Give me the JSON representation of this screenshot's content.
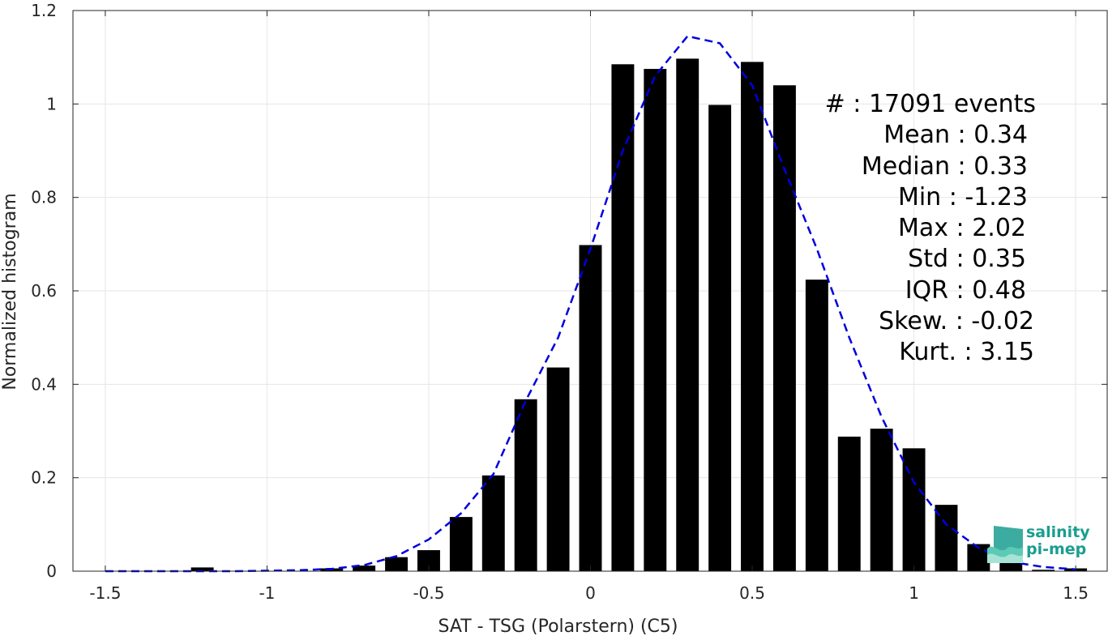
{
  "chart_data": {
    "type": "bar",
    "xlabel": "SAT - TSG (Polarstern) (C5)",
    "ylabel": "Normalized histogram",
    "xlim": [
      -1.6,
      1.6
    ],
    "ylim": [
      0,
      1.2
    ],
    "xticks": [
      -1.5,
      -1,
      -0.5,
      0,
      0.5,
      1,
      1.5
    ],
    "xtick_labels": [
      "-1.5",
      "-1",
      "-0.5",
      "0",
      "0.5",
      "1",
      "1.5"
    ],
    "yticks": [
      0,
      0.2,
      0.4,
      0.6,
      0.8,
      1,
      1.2
    ],
    "ytick_labels": [
      "0",
      "0.2",
      "0.4",
      "0.6",
      "0.8",
      "1",
      "1.2"
    ],
    "grid": true,
    "bar_width": 0.07,
    "bars": {
      "x": [
        -1.2,
        -0.8,
        -0.7,
        -0.6,
        -0.5,
        -0.4,
        -0.3,
        -0.2,
        -0.1,
        0.0,
        0.1,
        0.2,
        0.3,
        0.4,
        0.5,
        0.6,
        0.7,
        0.8,
        0.9,
        1.0,
        1.1,
        1.2,
        1.3,
        1.4,
        1.5
      ],
      "values": [
        0.008,
        0.006,
        0.012,
        0.03,
        0.045,
        0.116,
        0.205,
        0.368,
        0.436,
        0.698,
        1.085,
        1.075,
        1.097,
        0.998,
        1.09,
        1.04,
        0.624,
        0.288,
        0.305,
        0.263,
        0.142,
        0.058,
        0.02,
        0.003,
        0.006
      ],
      "color": "#000000"
    },
    "fit_curve": {
      "style": "dashed",
      "color": "#0000dd",
      "x": [
        -1.5,
        -1.3,
        -1.1,
        -0.9,
        -0.8,
        -0.7,
        -0.6,
        -0.5,
        -0.4,
        -0.3,
        -0.2,
        -0.1,
        0.0,
        0.1,
        0.2,
        0.3,
        0.4,
        0.5,
        0.6,
        0.7,
        0.8,
        0.9,
        1.0,
        1.1,
        1.2,
        1.3,
        1.4,
        1.5
      ],
      "y": [
        0.0,
        0.0,
        0.0,
        0.002,
        0.005,
        0.013,
        0.032,
        0.068,
        0.124,
        0.208,
        0.365,
        0.5,
        0.69,
        0.9,
        1.06,
        1.145,
        1.13,
        1.04,
        0.86,
        0.69,
        0.5,
        0.33,
        0.19,
        0.1,
        0.05,
        0.02,
        0.009,
        0.004
      ]
    },
    "stats": [
      "#  : 17091 events",
      "Mean : 0.34",
      "Median : 0.33",
      "Min : -1.23",
      "Max : 2.02",
      "Std : 0.35",
      "IQR : 0.48",
      "Skew. : -0.02",
      "Kurt. : 3.15"
    ]
  },
  "logo": {
    "line1": "salinity",
    "line2": "pi-mep",
    "color": "#1a9e8f"
  }
}
